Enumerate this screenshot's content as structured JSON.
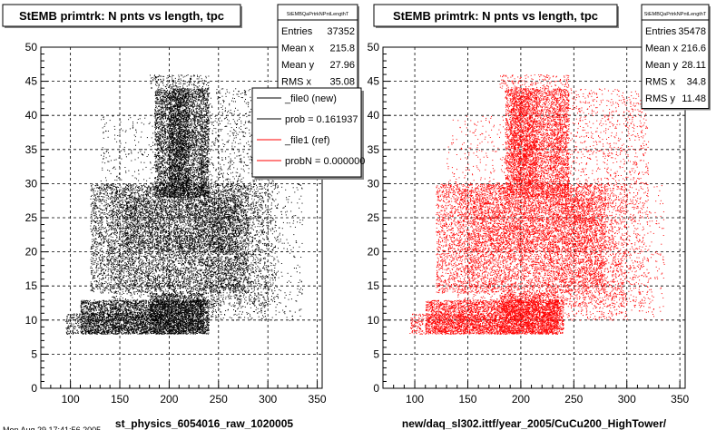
{
  "window": {
    "background": "#ffffff",
    "footer_text": "Mon Aug 29 17:41:56 2005"
  },
  "colors": {
    "frame": "#000000",
    "grid": "#000000",
    "reference": "#000000",
    "new": "#ff0000",
    "text": "#000000"
  },
  "chart_data": [
    {
      "type": "scatter",
      "title": "StEMB primtrk: N pnts vs length, tpc",
      "xlabel": "st_physics_6054016_raw_1020005",
      "ylabel": "",
      "xlim": [
        70,
        355
      ],
      "ylim": [
        0,
        50
      ],
      "xticks": [
        100,
        150,
        200,
        250,
        300,
        350
      ],
      "yticks": [
        0,
        5,
        10,
        15,
        20,
        25,
        30,
        35,
        40,
        45,
        50
      ],
      "grid": true,
      "marker_color": "#000000",
      "stats": {
        "name": "StEMBQaPrtrkNPntLengthT",
        "entries": [
          {
            "label": "Entries",
            "value": "37352"
          },
          {
            "label": "Mean x",
            "value": "215.8"
          },
          {
            "label": "Mean y",
            "value": "27.96"
          },
          {
            "label": "RMS x",
            "value": "35.08"
          }
        ]
      },
      "legend": {
        "placement": "top-right",
        "items": [
          {
            "label": "_file0 (new)",
            "color": "#000000"
          },
          {
            "label": "prob = 0.161937",
            "color": "#000000"
          },
          {
            "label": "_file1 (ref)",
            "color": "#ff0000"
          },
          {
            "label": "probN = 0.000000",
            "color": "#ff0000"
          }
        ]
      },
      "regions": [
        {
          "x": [
            185,
            240
          ],
          "y": [
            28,
            44
          ],
          "density": 4200
        },
        {
          "x": [
            200,
            220
          ],
          "y": [
            28,
            44
          ],
          "density": 1200
        },
        {
          "x": [
            180,
            240
          ],
          "y": [
            44,
            46
          ],
          "density": 180
        },
        {
          "x": [
            110,
            240
          ],
          "y": [
            8,
            13
          ],
          "density": 3600
        },
        {
          "x": [
            180,
            235
          ],
          "y": [
            8,
            14
          ],
          "density": 1600
        },
        {
          "x": [
            95,
            180
          ],
          "y": [
            8,
            11
          ],
          "density": 700
        },
        {
          "x": [
            120,
            280
          ],
          "y": [
            14,
            30
          ],
          "density": 6000
        },
        {
          "x": [
            155,
            270
          ],
          "y": [
            20,
            28
          ],
          "density": 1500
        },
        {
          "x": [
            140,
            300
          ],
          "y": [
            10,
            30
          ],
          "density": 2500
        },
        {
          "x": [
            230,
            310
          ],
          "y": [
            12,
            44
          ],
          "density": 1800
        },
        {
          "x": [
            270,
            335
          ],
          "y": [
            10,
            30
          ],
          "density": 350
        },
        {
          "x": [
            130,
            185
          ],
          "y": [
            28,
            40
          ],
          "density": 200
        }
      ]
    },
    {
      "type": "scatter",
      "title": "StEMB primtrk: N pnts vs length, tpc",
      "xlabel": "new/daq_sl302.ittf/year_2005/CuCu200_HighTower/",
      "ylabel": "",
      "xlim": [
        70,
        355
      ],
      "ylim": [
        0,
        50
      ],
      "xticks": [
        100,
        150,
        200,
        250,
        300,
        350
      ],
      "yticks": [
        0,
        5,
        10,
        15,
        20,
        25,
        30,
        35,
        40,
        45,
        50
      ],
      "grid": true,
      "marker_color": "#ff0000",
      "stats": {
        "name": "StEMBQaPrtrkNPntLengthT",
        "entries": [
          {
            "label": "Entries",
            "value": "35478"
          },
          {
            "label": "Mean x",
            "value": "216.6"
          },
          {
            "label": "Mean y",
            "value": "28.11"
          },
          {
            "label": "RMS x",
            "value": "34.8"
          },
          {
            "label": "RMS y",
            "value": "11.48"
          }
        ]
      },
      "regions": [
        {
          "x": [
            185,
            245
          ],
          "y": [
            28,
            44
          ],
          "density": 4000
        },
        {
          "x": [
            190,
            215
          ],
          "y": [
            30,
            44
          ],
          "density": 1000
        },
        {
          "x": [
            180,
            245
          ],
          "y": [
            44,
            46
          ],
          "density": 160
        },
        {
          "x": [
            110,
            240
          ],
          "y": [
            8,
            13
          ],
          "density": 3400
        },
        {
          "x": [
            180,
            235
          ],
          "y": [
            8,
            14
          ],
          "density": 1500
        },
        {
          "x": [
            95,
            180
          ],
          "y": [
            8,
            11
          ],
          "density": 650
        },
        {
          "x": [
            120,
            280
          ],
          "y": [
            14,
            30
          ],
          "density": 5600
        },
        {
          "x": [
            155,
            270
          ],
          "y": [
            20,
            28
          ],
          "density": 1400
        },
        {
          "x": [
            140,
            300
          ],
          "y": [
            10,
            30
          ],
          "density": 2400
        },
        {
          "x": [
            230,
            320
          ],
          "y": [
            12,
            44
          ],
          "density": 1900
        },
        {
          "x": [
            270,
            335
          ],
          "y": [
            10,
            30
          ],
          "density": 350
        },
        {
          "x": [
            130,
            185
          ],
          "y": [
            28,
            40
          ],
          "density": 200
        }
      ]
    }
  ]
}
